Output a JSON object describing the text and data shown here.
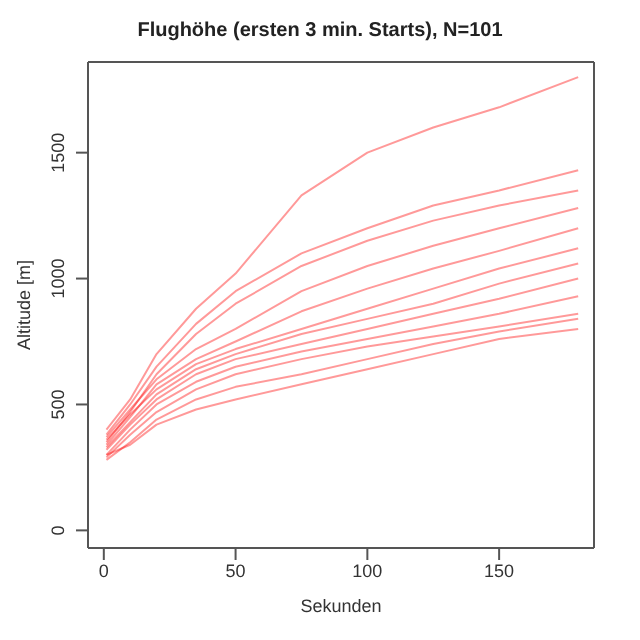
{
  "chart_data": {
    "type": "line",
    "title": "Flughöhe (ersten 3 min. Starts), N=101",
    "xlabel": "Sekunden",
    "ylabel": "Altitude [m]",
    "x": [
      1,
      10,
      20,
      35,
      50,
      75,
      100,
      125,
      150,
      180
    ],
    "xlim": [
      -6,
      186
    ],
    "ylim": [
      -70,
      1860
    ],
    "xticks": [
      0,
      50,
      100,
      150
    ],
    "yticks": [
      0,
      500,
      1000,
      1500
    ],
    "grid": false,
    "legend": false,
    "marker": "none",
    "line_style": "solid",
    "series": [
      {
        "color": "#ff0000",
        "values": [
          400,
          520,
          700,
          880,
          1020,
          1330,
          1500,
          1600,
          1680,
          1800
        ]
      },
      {
        "color": "#ff0000",
        "values": [
          380,
          500,
          650,
          820,
          950,
          1100,
          1200,
          1290,
          1350,
          1430
        ]
      },
      {
        "color": "#ff0000",
        "values": [
          350,
          470,
          620,
          780,
          900,
          1050,
          1150,
          1230,
          1290,
          1350
        ]
      },
      {
        "color": "#ff0000",
        "values": [
          370,
          480,
          600,
          720,
          800,
          950,
          1050,
          1130,
          1200,
          1280
        ]
      },
      {
        "color": "#ff0000",
        "values": [
          340,
          450,
          580,
          680,
          750,
          870,
          960,
          1040,
          1110,
          1200
        ]
      },
      {
        "color": "#ff0000",
        "values": [
          360,
          460,
          560,
          660,
          720,
          800,
          880,
          960,
          1040,
          1120
        ]
      },
      {
        "color": "#ff0000",
        "values": [
          330,
          430,
          540,
          640,
          700,
          780,
          840,
          900,
          980,
          1060
        ]
      },
      {
        "color": "#ff0000",
        "values": [
          320,
          420,
          520,
          620,
          680,
          740,
          800,
          860,
          920,
          1000
        ]
      },
      {
        "color": "#ff0000",
        "values": [
          300,
          400,
          500,
          590,
          650,
          710,
          760,
          810,
          860,
          930
        ]
      },
      {
        "color": "#ff0000",
        "values": [
          290,
          380,
          470,
          560,
          620,
          680,
          730,
          770,
          810,
          860
        ]
      },
      {
        "color": "#ff0000",
        "values": [
          280,
          350,
          440,
          520,
          570,
          620,
          680,
          740,
          790,
          840
        ]
      },
      {
        "color": "#ff0000",
        "values": [
          300,
          340,
          420,
          480,
          520,
          580,
          640,
          700,
          760,
          800
        ]
      }
    ]
  }
}
